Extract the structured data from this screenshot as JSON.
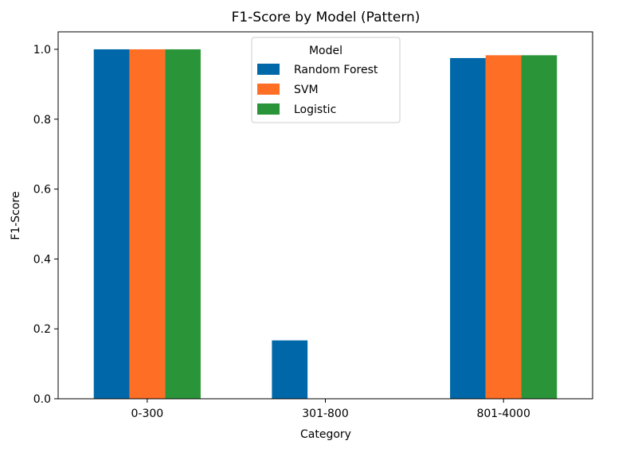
{
  "chart_data": {
    "type": "bar",
    "title": "F1-Score by Model (Pattern)",
    "xlabel": "Category",
    "ylabel": "F1-Score",
    "categories": [
      "0-300",
      "301-800",
      "801-4000"
    ],
    "series": [
      {
        "name": "Random Forest",
        "color": "#0068a8",
        "values": [
          1.0,
          0.167,
          0.975
        ]
      },
      {
        "name": "SVM",
        "color": "#ff6e25",
        "values": [
          1.0,
          0.0,
          0.983
        ]
      },
      {
        "name": "Logistic",
        "color": "#2a9538",
        "values": [
          1.0,
          0.0,
          0.983
        ]
      }
    ],
    "ylim": [
      0,
      1.05
    ],
    "yticks": [
      0.0,
      0.2,
      0.4,
      0.6,
      0.8,
      1.0
    ],
    "ytick_labels": [
      "0.0",
      "0.2",
      "0.4",
      "0.6",
      "0.8",
      "1.0"
    ],
    "legend": {
      "title": "Model",
      "placement": "upper-center"
    },
    "grid": false
  }
}
